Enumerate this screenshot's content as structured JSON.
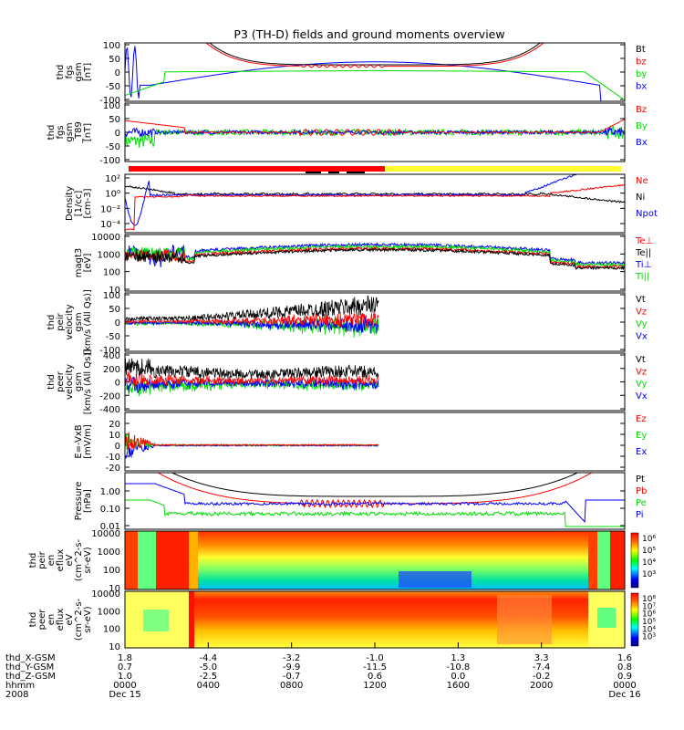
{
  "title": "P3 (TH-D) fields and ground moments overview",
  "colors": {
    "black": "#000000",
    "red": "#ff0000",
    "green": "#00dd00",
    "blue": "#0000ff",
    "yellow": "#ffff30"
  },
  "chart_data": [
    {
      "id": "fgs",
      "type": "line",
      "ylabel": [
        "thd",
        "fgs",
        "gsm",
        "[nT]"
      ],
      "ylim": [
        -100,
        100
      ],
      "yticks": [
        "100",
        "50",
        "0",
        "-50",
        "-100"
      ],
      "series": [
        {
          "name": "Bt",
          "color": "black"
        },
        {
          "name": "bz",
          "color": "red"
        },
        {
          "name": "by",
          "color": "green"
        },
        {
          "name": "bx",
          "color": "blue"
        }
      ]
    },
    {
      "id": "fgs_detrend",
      "type": "line",
      "ylabel": [
        "thd",
        "fgs",
        "gsm",
        "_T89",
        "[nT]"
      ],
      "ylim": [
        -100,
        100
      ],
      "yticks": [
        "100",
        "50",
        "0",
        "-50",
        "-100"
      ],
      "series": [
        {
          "name": "Bz",
          "color": "red"
        },
        {
          "name": "By",
          "color": "green"
        },
        {
          "name": "Bx",
          "color": "blue"
        }
      ]
    },
    {
      "id": "density",
      "type": "line",
      "ylabel": [
        "Density",
        "[1/cc]",
        "[cm-3]"
      ],
      "yscale": "log",
      "ylim": [
        1e-05,
        100
      ],
      "yticks": [
        "10²",
        "10⁰",
        "10⁻²",
        "10⁻⁴"
      ],
      "series": [
        {
          "name": "Ne",
          "color": "red"
        },
        {
          "name": "Ni",
          "color": "black"
        },
        {
          "name": "Npot",
          "color": "blue"
        }
      ]
    },
    {
      "id": "temperature",
      "type": "line",
      "ylabel": [
        "magt3",
        "[eV]"
      ],
      "yscale": "log",
      "ylim": [
        10,
        10000
      ],
      "yticks": [
        "10000",
        "1000",
        "100",
        "10"
      ],
      "series": [
        {
          "name": "Te⊥",
          "color": "red"
        },
        {
          "name": "Te||",
          "color": "black"
        },
        {
          "name": "Ti⊥",
          "color": "blue"
        },
        {
          "name": "Ti||",
          "color": "green"
        }
      ]
    },
    {
      "id": "ion_velocity",
      "type": "line",
      "ylabel": [
        "thd",
        "peir",
        "velocity",
        "gsm",
        "[km/s (All Qs)]"
      ],
      "ylim": [
        -100,
        100
      ],
      "yticks": [
        "100",
        "50",
        "0",
        "-50",
        "-100"
      ],
      "series": [
        {
          "name": "Vt",
          "color": "black"
        },
        {
          "name": "Vz",
          "color": "red"
        },
        {
          "name": "Vy",
          "color": "green"
        },
        {
          "name": "Vx",
          "color": "blue"
        }
      ]
    },
    {
      "id": "electron_velocity",
      "type": "line",
      "ylabel": [
        "thd",
        "peer",
        "velocity",
        "gsm",
        "[km/s (All Qs)]"
      ],
      "ylim": [
        -400,
        400
      ],
      "yticks": [
        "400",
        "200",
        "0",
        "-200",
        "-400"
      ],
      "series": [
        {
          "name": "Vt",
          "color": "black"
        },
        {
          "name": "Vz",
          "color": "red"
        },
        {
          "name": "Vy",
          "color": "green"
        },
        {
          "name": "Vx",
          "color": "blue"
        }
      ]
    },
    {
      "id": "efield",
      "type": "line",
      "ylabel": [
        "E=-VxB",
        "[mV/m]"
      ],
      "ylim": [
        -20,
        30
      ],
      "yticks": [
        "20",
        "10",
        "0",
        "-10",
        "-20"
      ],
      "series": [
        {
          "name": "Ez",
          "color": "red"
        },
        {
          "name": "Ey",
          "color": "green"
        },
        {
          "name": "Ex",
          "color": "blue"
        }
      ]
    },
    {
      "id": "pressure",
      "type": "line",
      "ylabel": [
        "Pressure",
        "[nPa]"
      ],
      "yscale": "log",
      "ylim": [
        0.01,
        10
      ],
      "yticks": [
        "1.00",
        "0.10",
        "0.01"
      ],
      "series": [
        {
          "name": "Pt",
          "color": "black"
        },
        {
          "name": "Pb",
          "color": "red"
        },
        {
          "name": "Pe",
          "color": "green"
        },
        {
          "name": "Pi",
          "color": "blue"
        }
      ]
    },
    {
      "id": "ion_spectrogram",
      "type": "heatmap",
      "ylabel": [
        "thd",
        "peir",
        "en",
        "eflux",
        "eV",
        "(cm^2-s-",
        "sr-eV)"
      ],
      "yscale": "log",
      "ylim": [
        10,
        20000
      ],
      "yticks": [
        "10000",
        "1000",
        "100",
        "10"
      ],
      "colorbar": [
        "10⁶",
        "10⁵",
        "10⁴",
        "10³"
      ]
    },
    {
      "id": "electron_spectrogram",
      "type": "heatmap",
      "ylabel": [
        "thd",
        "peer",
        "en",
        "eflux",
        "eV",
        "(cm^2-s-",
        "sr-eV)"
      ],
      "yscale": "log",
      "ylim": [
        10,
        20000
      ],
      "yticks": [
        "10000",
        "1000",
        "100",
        "10"
      ],
      "colorbar": [
        "10⁸",
        "10⁷",
        "10⁶",
        "10⁵",
        "10⁴",
        "10³"
      ]
    }
  ],
  "x_axis": {
    "row_labels": [
      "thd_X-GSM",
      "thd_Y-GSM",
      "thd_Z-GSM",
      "hhmm",
      "2008"
    ],
    "columns": [
      {
        "x": "1.8",
        "y": "0.7",
        "z": "1.0",
        "hhmm": "0000",
        "date": "Dec 15"
      },
      {
        "x": "-4.4",
        "y": "-5.0",
        "z": "-2.5",
        "hhmm": "0400",
        "date": ""
      },
      {
        "x": "-3.2",
        "y": "-9.9",
        "z": "-0.7",
        "hhmm": "0800",
        "date": ""
      },
      {
        "x": "-1.0",
        "y": "-11.5",
        "z": "0.6",
        "hhmm": "1200",
        "date": ""
      },
      {
        "x": "1.3",
        "y": "-10.8",
        "z": "0.0",
        "hhmm": "1600",
        "date": ""
      },
      {
        "x": "3.3",
        "y": "-7.4",
        "z": "-0.2",
        "hhmm": "2000",
        "date": ""
      },
      {
        "x": "1.6",
        "y": "0.8",
        "z": "0.9",
        "hhmm": "0000",
        "date": "Dec 16"
      }
    ]
  }
}
